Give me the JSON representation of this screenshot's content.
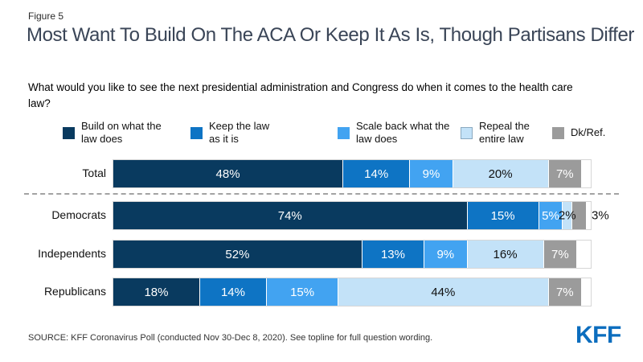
{
  "figure_label": "Figure 5",
  "title": "Most Want To Build On The ACA Or Keep It As Is, Though Partisans Differ",
  "subtitle": "What would you like to see the next presidential administration and Congress do when it comes to the health care law?",
  "source": "SOURCE: KFF Coronavirus Poll (conducted Nov 30-Dec 8, 2020). See topline for full question wording.",
  "logo": "KFF",
  "colors": {
    "title_text": "#3a4557",
    "logo_blue": "#0b6dbe",
    "dashed_line": "#a3a3a3",
    "bar_border": "#d6d6d6"
  },
  "chart_data": {
    "type": "bar",
    "orientation": "horizontal-stacked",
    "unit": "%",
    "axis_max": 100,
    "grid": false,
    "legend_position": "top",
    "separator_after_row": 0,
    "categories": [
      "Total",
      "Democrats",
      "Independents",
      "Republicans"
    ],
    "series": [
      {
        "name": "Build on what the law does",
        "color": "#093a5f",
        "label_color": "#ffffff",
        "values": [
          48,
          74,
          52,
          18
        ]
      },
      {
        "name": "Keep the law as it is",
        "color": "#0e74c4",
        "label_color": "#ffffff",
        "values": [
          14,
          15,
          13,
          14
        ]
      },
      {
        "name": "Scale back what the law does",
        "color": "#42a3f1",
        "label_color": "#ffffff",
        "values": [
          9,
          5,
          9,
          15
        ]
      },
      {
        "name": "Repeal the entire law",
        "color": "#c3e2f8",
        "label_color": "#111111",
        "swatch_border": "#8aa9c0",
        "values": [
          20,
          2,
          16,
          44
        ]
      },
      {
        "name": "Dk/Ref.",
        "color": "#9b9b9b",
        "label_color": "#ffffff",
        "values": [
          7,
          3,
          7,
          7
        ]
      }
    ],
    "label_overrides": [
      {
        "row": 1,
        "series": 3,
        "mode": "overflow-dark"
      },
      {
        "row": 1,
        "series": 4,
        "mode": "outside"
      }
    ]
  }
}
